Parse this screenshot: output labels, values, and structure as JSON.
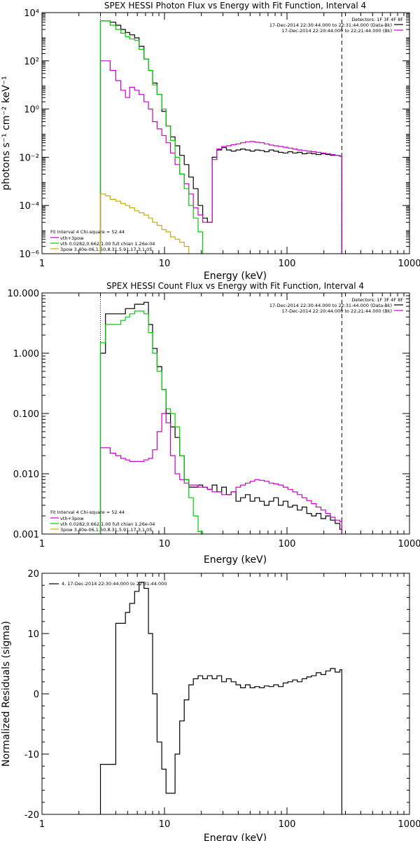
{
  "chart_data": [
    {
      "type": "line",
      "title": "SPEX HESSI Photon Flux vs Energy with Fit Function, Interval 4",
      "xlabel": "Energy (keV)",
      "ylabel": "photons s⁻¹ cm⁻² keV⁻¹",
      "xscale": "log",
      "yscale": "log",
      "xlim": [
        1,
        1000
      ],
      "ylim": [
        1e-06,
        10000.0
      ],
      "xticks": [
        "1",
        "10",
        "100",
        "1000"
      ],
      "yticks": [
        "10⁻⁶",
        "10⁻⁴",
        "10⁻²",
        "10⁰",
        "10²",
        "10⁴"
      ],
      "detectors_label": "Detectors: 1F 3F 4F 8F",
      "legend_top": [
        {
          "text": "17-Dec-2014 22:30:44.000 to 22:31:44.000 (Data-Bk)",
          "color": "#000000"
        },
        {
          "text": "17-Dec-2014 22:20:44.000 to 22:21:44.000 (Bk)",
          "color": "#cc00cc"
        }
      ],
      "fit_header": "Fit Interval  4    Chi-square = 52.44",
      "fit_legend": [
        {
          "text": "vth+3pow",
          "color": "#cc00cc"
        },
        {
          "text": "vth 0.0282,0.662,1.00  full chian 1.26e-04",
          "color": "#00cc00"
        },
        {
          "text": "3pow 3.40e-06,1.50,8.31,5.91,17.3,1.05",
          "color": "#ccaa00"
        }
      ],
      "fit_range_keV": [
        3,
        280
      ],
      "series": [
        {
          "name": "Data-Bk",
          "color": "#000000",
          "x": [
            3,
            3.3,
            3.6,
            4,
            4.4,
            4.8,
            5.2,
            5.7,
            6.2,
            6.8,
            7.4,
            8,
            8.7,
            9.5,
            10.3,
            11.2,
            12.2,
            13.3,
            14.5,
            15.8,
            17.2,
            18.8,
            20.5,
            22.4,
            24.5,
            26.8,
            29.3,
            32,
            35,
            38.3,
            41.8,
            45.7,
            50,
            54.6,
            59.7,
            65.2,
            71.3,
            77.9,
            85.1,
            93,
            101.7,
            111.1,
            121.4,
            132.7,
            145,
            158.5,
            173.2,
            189.3,
            206.9,
            226.1,
            247.1,
            270,
            280
          ],
          "y": [
            4500,
            4500,
            4000,
            3000,
            2000,
            1500,
            1200,
            900,
            400,
            120,
            40,
            12,
            4,
            0.8,
            0.2,
            0.07,
            0.03,
            0.012,
            0.005,
            0.0015,
            0.0005,
            0.0001,
            3e-05,
            2e-05,
            0.01,
            0.02,
            0.025,
            0.02,
            0.018,
            0.02,
            0.022,
            0.02,
            0.018,
            0.02,
            0.019,
            0.017,
            0.02,
            0.018,
            0.016,
            0.015,
            0.017,
            0.015,
            0.016,
            0.014,
            0.015,
            0.014,
            0.013,
            0.014,
            0.013,
            0.012,
            0.012,
            0.011,
            0.011
          ]
        },
        {
          "name": "vth+3pow",
          "color": "#cc00cc",
          "x": [
            3,
            3.3,
            3.6,
            4,
            4.4,
            4.8,
            5.2,
            5.7,
            6.2,
            6.8,
            7.4,
            8,
            8.7,
            9.5,
            10.3,
            11.2,
            12.2,
            13.3,
            14.5,
            15.8,
            17.2,
            18.8,
            20.5,
            22.4,
            24.5,
            26.8,
            29.3,
            32,
            35,
            38.3,
            41.8,
            45.7,
            50,
            54.6,
            59.7,
            65.2,
            71.3,
            77.9,
            85.1,
            93,
            101.7,
            111.1,
            121.4,
            132.7,
            145,
            158.5,
            173.2,
            189.3,
            206.9,
            226.1,
            247.1,
            270,
            280
          ],
          "y": [
            100,
            100,
            40,
            15,
            6,
            3,
            8,
            6,
            4,
            2,
            1,
            0.3,
            0.15,
            0.08,
            0.04,
            0.015,
            0.005,
            0.002,
            0.0008,
            0.0003,
            8e-05,
            4e-05,
            2e-05,
            2e-05,
            0.008,
            0.022,
            0.028,
            0.03,
            0.033,
            0.036,
            0.04,
            0.044,
            0.045,
            0.042,
            0.04,
            0.036,
            0.032,
            0.03,
            0.028,
            0.026,
            0.024,
            0.022,
            0.02,
            0.019,
            0.018,
            0.017,
            0.016,
            0.015,
            0.014,
            0.013,
            0.012,
            0.011,
            0.01
          ]
        },
        {
          "name": "vth",
          "color": "#00cc00",
          "x": [
            3,
            3.3,
            3.6,
            4,
            4.4,
            4.8,
            5.2,
            5.7,
            6.2,
            6.8,
            7.4,
            8,
            8.7,
            9.5,
            10.3,
            11.2,
            12.2,
            13.3,
            14.5,
            15.8,
            17.2,
            18.8,
            20.5
          ],
          "y": [
            4500,
            4500,
            3000,
            2000,
            1400,
            1000,
            800,
            700,
            300,
            120,
            40,
            10,
            4,
            1,
            0.2,
            0.05,
            0.01,
            0.002,
            0.0005,
            0.0001,
            3e-05,
            8e-06,
            1e-06
          ]
        },
        {
          "name": "3pow",
          "color": "#ccaa00",
          "x": [
            3,
            3.3,
            3.6,
            4,
            4.4,
            4.8,
            5.2,
            5.7,
            6.2,
            6.8,
            7.4,
            8,
            8.7,
            9.5,
            10.3,
            11.2,
            12.2,
            13.3,
            14.5,
            15.8
          ],
          "y": [
            0.0003,
            0.00025,
            0.00018,
            0.00015,
            0.00012,
            0.0001,
            8e-05,
            6e-05,
            5e-05,
            4e-05,
            3e-05,
            2e-05,
            1.5e-05,
            1e-05,
            8e-06,
            5e-06,
            4e-06,
            3e-06,
            2e-06,
            1e-06
          ]
        }
      ]
    },
    {
      "type": "line",
      "title": "SPEX HESSI Count Flux vs Energy with Fit Function, Interval 4",
      "xlabel": "Energy (keV)",
      "ylabel": "",
      "xscale": "log",
      "yscale": "log",
      "xlim": [
        1,
        1000
      ],
      "ylim": [
        0.001,
        10
      ],
      "xticks": [
        "1",
        "10",
        "100",
        "1000"
      ],
      "yticks": [
        "0.001",
        "0.010",
        "0.100",
        "1.000",
        "10.000"
      ],
      "detectors_label": "Detectors: 1F 3F 4F 8F",
      "legend_top": [
        {
          "text": "17-Dec-2014 22:30:44.000 to 22:31:44.000 (Data-Bk)",
          "color": "#000000"
        },
        {
          "text": "17-Dec-2014 22:20:44.000 to 22:21:44.000 (Bk)",
          "color": "#cc00cc"
        }
      ],
      "fit_header": "Fit Interval  4    Chi-square = 52.44",
      "fit_legend": [
        {
          "text": "vth+3pow",
          "color": "#cc00cc"
        },
        {
          "text": "vth 0.0282,0.662,1.00  full chian 1.26e-04",
          "color": "#00cc00"
        },
        {
          "text": "3pow 3.40e-06,1.50,8.31,5.91,17.3,1.05",
          "color": "#ccaa00"
        }
      ],
      "fit_range_keV": [
        3,
        280
      ],
      "series": [
        {
          "name": "Data-Bk",
          "color": "#000000",
          "x": [
            3,
            3.3,
            3.6,
            4,
            4.4,
            4.8,
            5.2,
            5.7,
            6.2,
            6.8,
            7.4,
            8,
            8.7,
            9.5,
            10.3,
            11.2,
            12.2,
            13.3,
            14.5,
            15.8,
            17.2,
            18.8,
            20.5,
            22.4,
            24.5,
            26.8,
            29.3,
            32,
            35,
            38.3,
            41.8,
            45.7,
            50,
            54.6,
            59.7,
            65.2,
            71.3,
            77.9,
            85.1,
            93,
            101.7,
            111.1,
            121.4,
            132.7,
            145,
            158.5,
            173.2,
            189.3,
            206.9,
            226.1,
            247.1,
            270,
            280
          ],
          "y": [
            1,
            4.5,
            4.5,
            4.5,
            4.5,
            5.5,
            5.5,
            6.5,
            6.5,
            7,
            3,
            1.2,
            0.6,
            0.25,
            0.1,
            0.06,
            0.04,
            0.02,
            0.008,
            0.006,
            0.006,
            0.0065,
            0.006,
            0.0055,
            0.0065,
            0.005,
            0.006,
            0.0045,
            0.005,
            0.0035,
            0.004,
            0.0045,
            0.0035,
            0.004,
            0.0035,
            0.003,
            0.0035,
            0.004,
            0.003,
            0.0035,
            0.0028,
            0.003,
            0.0025,
            0.0028,
            0.0022,
            0.002,
            0.0022,
            0.0018,
            0.002,
            0.0017,
            0.0015,
            0.0012,
            0.0012
          ]
        },
        {
          "name": "vth+3pow",
          "color": "#cc00cc",
          "x": [
            3,
            3.3,
            3.6,
            4,
            4.4,
            4.8,
            5.2,
            5.7,
            6.2,
            6.8,
            7.4,
            8,
            8.7,
            9.5,
            10.3,
            11.2,
            12.2,
            13.3,
            14.5,
            15.8,
            17.2,
            18.8,
            20.5,
            22.4,
            24.5,
            26.8,
            29.3,
            32,
            35,
            38.3,
            41.8,
            45.7,
            50,
            54.6,
            59.7,
            65.2,
            71.3,
            77.9,
            85.1,
            93,
            101.7,
            111.1,
            121.4,
            132.7,
            145,
            158.5,
            173.2,
            189.3,
            206.9,
            226.1,
            247.1,
            270,
            280
          ],
          "y": [
            0.027,
            0.027,
            0.022,
            0.02,
            0.018,
            0.017,
            0.016,
            0.016,
            0.016,
            0.017,
            0.018,
            0.025,
            0.05,
            0.1,
            0.07,
            0.02,
            0.01,
            0.008,
            0.007,
            0.0065,
            0.0065,
            0.006,
            0.006,
            0.0055,
            0.005,
            0.005,
            0.0045,
            0.0045,
            0.005,
            0.006,
            0.0065,
            0.007,
            0.0075,
            0.008,
            0.0078,
            0.0075,
            0.007,
            0.0068,
            0.0065,
            0.006,
            0.0055,
            0.005,
            0.0045,
            0.004,
            0.0036,
            0.0032,
            0.0028,
            0.0025,
            0.0022,
            0.0019,
            0.0017,
            0.0016,
            0.0016
          ]
        },
        {
          "name": "vth",
          "color": "#00cc00",
          "x": [
            3,
            3.3,
            3.6,
            4,
            4.4,
            4.8,
            5.2,
            5.7,
            6.2,
            6.8,
            7.4,
            8,
            8.7,
            9.5,
            10.3,
            11.2,
            12.2,
            13.3,
            14.5,
            15.8,
            17.2,
            18.8,
            20.5
          ],
          "y": [
            1.5,
            3,
            3,
            3,
            3.5,
            4,
            4.5,
            5,
            5,
            4.5,
            2.2,
            1,
            0.5,
            0.25,
            0.12,
            0.1,
            0.06,
            0.02,
            0.008,
            0.004,
            0.002,
            0.0011,
            0.0009
          ]
        }
      ]
    },
    {
      "type": "line",
      "title": "",
      "xlabel": "Energy (keV)",
      "ylabel": "Normalized Residuals (sigma)",
      "xscale": "log",
      "yscale": "linear",
      "xlim": [
        1,
        1000
      ],
      "ylim": [
        -20,
        20
      ],
      "xticks": [
        "1",
        "10",
        "100",
        "1000"
      ],
      "yticks": [
        "-20",
        "-10",
        "0",
        "10",
        "20"
      ],
      "legend": [
        {
          "text": "4. 17-Dec-2014 22:30:44.000 to 22:31:44.000",
          "color": "#000000"
        }
      ],
      "series": [
        {
          "name": "4. 17-Dec-2014 22:30:44.000 to 22:31:44.000",
          "color": "#000000",
          "x": [
            3,
            3.3,
            3.6,
            4,
            4.4,
            4.8,
            5.2,
            5.7,
            6.2,
            6.8,
            7.4,
            8,
            8.7,
            9.5,
            10.3,
            11.2,
            12.2,
            13.3,
            14.5,
            15.8,
            17.2,
            18.8,
            20.5,
            22.4,
            24.5,
            26.8,
            29.3,
            32,
            35,
            38.3,
            41.8,
            45.7,
            50,
            54.6,
            59.7,
            65.2,
            71.3,
            77.9,
            85.1,
            93,
            101.7,
            111.1,
            121.4,
            132.7,
            145,
            158.5,
            173.2,
            189.3,
            206.9,
            226.1,
            247.1,
            270,
            280
          ],
          "y": [
            -11.7,
            -11.7,
            -11.7,
            11.7,
            11.7,
            13.5,
            15,
            17,
            18.5,
            17.5,
            10,
            0,
            -8,
            -12.5,
            -16.5,
            -16.5,
            -10,
            -4.5,
            -1,
            1.5,
            2.5,
            3,
            2.5,
            3,
            2.5,
            3,
            2,
            2.5,
            2,
            1.5,
            1,
            1.5,
            1,
            1.2,
            1,
            1.3,
            1.2,
            1.5,
            1.2,
            1.8,
            2,
            2.3,
            2,
            2.5,
            2.8,
            3,
            3.5,
            3.2,
            3.8,
            4.2,
            3.6,
            4,
            3.8
          ]
        }
      ]
    }
  ]
}
